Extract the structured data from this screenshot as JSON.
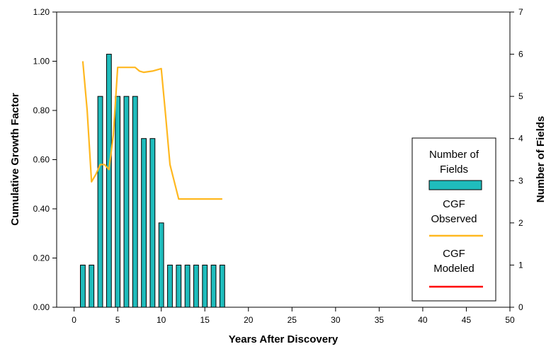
{
  "chart_data": {
    "type": "bar",
    "xlabel": "Years After Discovery",
    "ylabel": "Cumulative Growth Factor",
    "y2label": "Number of Fields",
    "xlim": [
      -2,
      50
    ],
    "ylim": [
      0,
      1.2
    ],
    "y2lim": [
      0,
      7
    ],
    "x_ticks": [
      0,
      5,
      10,
      15,
      20,
      25,
      30,
      35,
      40,
      45,
      50
    ],
    "y_ticks": [
      "0.00",
      "0.20",
      "0.40",
      "0.60",
      "0.80",
      "1.00",
      "1.20"
    ],
    "y2_ticks": [
      0,
      1,
      2,
      3,
      4,
      5,
      6,
      7
    ],
    "grid": false,
    "legend_position": "right",
    "bars": {
      "name": "Number of Fields",
      "axis": "right",
      "color": "#1fbcbc",
      "x": [
        1,
        2,
        3,
        4,
        5,
        6,
        7,
        8,
        9,
        10,
        11,
        12,
        13,
        14,
        15,
        16,
        17
      ],
      "values": [
        1,
        1,
        5,
        6,
        5,
        5,
        5,
        4,
        4,
        2,
        1,
        1,
        1,
        1,
        1,
        1,
        1
      ]
    },
    "series": [
      {
        "name": "CGF Observed",
        "axis": "left",
        "color": "#ffb820",
        "x": [
          1,
          1.5,
          2,
          2.5,
          3,
          3.5,
          4,
          4.5,
          5,
          6,
          7,
          7.5,
          8,
          9,
          10,
          10.5,
          11,
          11.5,
          12,
          13,
          14,
          15,
          16,
          17
        ],
        "y": [
          1.0,
          0.8,
          0.51,
          0.54,
          0.58,
          0.58,
          0.56,
          0.7,
          0.975,
          0.975,
          0.975,
          0.96,
          0.955,
          0.96,
          0.97,
          0.78,
          0.58,
          0.51,
          0.44,
          0.44,
          0.44,
          0.44,
          0.44,
          0.44
        ]
      },
      {
        "name": "CGF Modeled",
        "axis": "left",
        "color": "#ff0000",
        "x": [],
        "y": []
      }
    ]
  },
  "legend": {
    "bars_label_line1": "Number of",
    "bars_label_line2": "Fields",
    "observed_label_line1": "CGF",
    "observed_label_line2": "Observed",
    "modeled_label_line1": "CGF",
    "modeled_label_line2": "Modeled"
  }
}
